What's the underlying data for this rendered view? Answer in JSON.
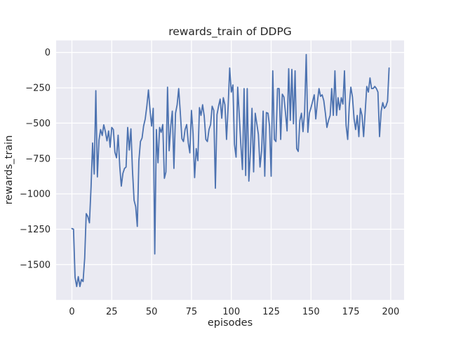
{
  "figure": {
    "title": "rewards_train of DDPG"
  },
  "axes": {
    "xlabel": "episodes",
    "ylabel": "rewards_train"
  },
  "colors": {
    "figure_background": "#ffffff",
    "axes_background": "#eaeaf2",
    "grid": "#ffffff",
    "line": "#4c72b0",
    "text": "#262626"
  },
  "chart_data": {
    "type": "line",
    "title": "rewards_train of DDPG",
    "xlabel": "episodes",
    "ylabel": "rewards_train",
    "legend": null,
    "grid": true,
    "style": "seaborn-darkgrid",
    "xticks": [
      0,
      25,
      50,
      75,
      100,
      125,
      150,
      175,
      200
    ],
    "yticks": [
      0,
      -250,
      -500,
      -750,
      -1000,
      -1250,
      -1500
    ],
    "xlim": [
      -9.9,
      208.4
    ],
    "ylim": [
      -1750,
      85
    ],
    "x_start": 0,
    "x_step": 1,
    "values": [
      -1245,
      -1250,
      -1590,
      -1655,
      -1585,
      -1655,
      -1605,
      -1620,
      -1455,
      -1140,
      -1160,
      -1205,
      -950,
      -640,
      -860,
      -270,
      -880,
      -620,
      -545,
      -587,
      -512,
      -560,
      -625,
      -555,
      -670,
      -530,
      -545,
      -705,
      -745,
      -585,
      -805,
      -945,
      -855,
      -820,
      -810,
      -530,
      -690,
      -540,
      -830,
      -1045,
      -1090,
      -1230,
      -770,
      -630,
      -605,
      -520,
      -470,
      -380,
      -265,
      -405,
      -520,
      -395,
      -1425,
      -545,
      -780,
      -530,
      -565,
      -510,
      -890,
      -845,
      -245,
      -695,
      -520,
      -415,
      -820,
      -430,
      -370,
      -255,
      -425,
      -610,
      -630,
      -545,
      -510,
      -640,
      -710,
      -410,
      -575,
      -885,
      -680,
      -765,
      -390,
      -445,
      -370,
      -450,
      -615,
      -630,
      -545,
      -510,
      -380,
      -410,
      -960,
      -440,
      -380,
      -330,
      -465,
      -320,
      -370,
      -615,
      -380,
      -110,
      -280,
      -230,
      -650,
      -740,
      -245,
      -450,
      -655,
      -828,
      -255,
      -870,
      -255,
      -910,
      -695,
      -395,
      -845,
      -430,
      -505,
      -580,
      -810,
      -695,
      -415,
      -875,
      -425,
      -430,
      -520,
      -875,
      -130,
      -615,
      -630,
      -255,
      -255,
      -615,
      -295,
      -315,
      -430,
      -555,
      -115,
      -480,
      -120,
      -505,
      -130,
      -680,
      -700,
      -480,
      -430,
      -560,
      -420,
      -15,
      -565,
      -430,
      -390,
      -345,
      -300,
      -470,
      -350,
      -255,
      -310,
      -300,
      -340,
      -430,
      -530,
      -480,
      -445,
      -255,
      -445,
      -130,
      -445,
      -320,
      -405,
      -320,
      -365,
      -130,
      -515,
      -615,
      -380,
      -245,
      -315,
      -470,
      -545,
      -445,
      -595,
      -395,
      -445,
      -595,
      -415,
      -240,
      -280,
      -180,
      -255,
      -255,
      -240,
      -255,
      -280,
      -595,
      -415,
      -355,
      -395,
      -380,
      -345,
      -110
    ]
  }
}
